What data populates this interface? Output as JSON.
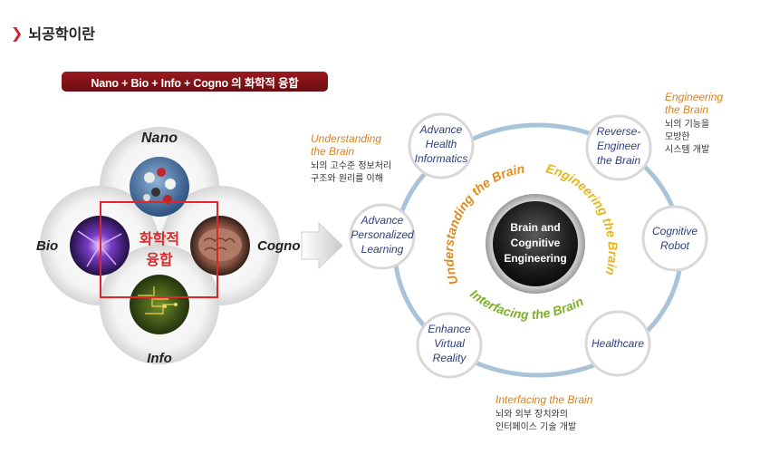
{
  "header": {
    "title": "뇌공학이란"
  },
  "banner": {
    "text": "Nano + Bio + Info + Cogno 의 화학적 융합"
  },
  "convergence": {
    "nano": "Nano",
    "bio": "Bio",
    "cogno": "Cogno",
    "info": "Info",
    "center_line1": "화학적",
    "center_line2": "융합"
  },
  "core": {
    "line1": "Brain and",
    "line2": "Cognitive",
    "line3": "Engineering"
  },
  "ring_labels": {
    "understanding": "Understanding the Brain",
    "engineering": "Engineering the Brain",
    "interfacing": "Interfacing the Brain"
  },
  "nodes": {
    "health_informatics": [
      "Advance",
      "Health",
      "Informatics"
    ],
    "reverse_engineer": [
      "Reverse-",
      "Engineer",
      "the Brain"
    ],
    "personalized_learning": [
      "Advance",
      "Personalized",
      "Learning"
    ],
    "cognitive_robot": [
      "Cognitive",
      "Robot"
    ],
    "virtual_reality": [
      "Enhance",
      "Virtual",
      "Reality"
    ],
    "healthcare": [
      "Healthcare"
    ]
  },
  "annotations": {
    "understanding": {
      "title1": "Understanding",
      "title2": "the Brain",
      "desc1": "뇌의 고수준 정보처리",
      "desc2": "구조와 원리를 이해"
    },
    "engineering": {
      "title1": "Engineering",
      "title2": "the Brain",
      "desc1": "뇌의 기능을",
      "desc2": "모방한",
      "desc3": "시스템 개발"
    },
    "interfacing": {
      "title1": "Interfacing the Brain",
      "desc1": "뇌와 외부 장치와의",
      "desc2": "인터페이스 기술 개발"
    }
  },
  "colors": {
    "accent_red": "#c0282d",
    "banner": "#7f1216",
    "ring": "#a9c4d8",
    "node_text": "#2d3f7e",
    "orange": "#d9821d",
    "green": "#7fae2e"
  }
}
